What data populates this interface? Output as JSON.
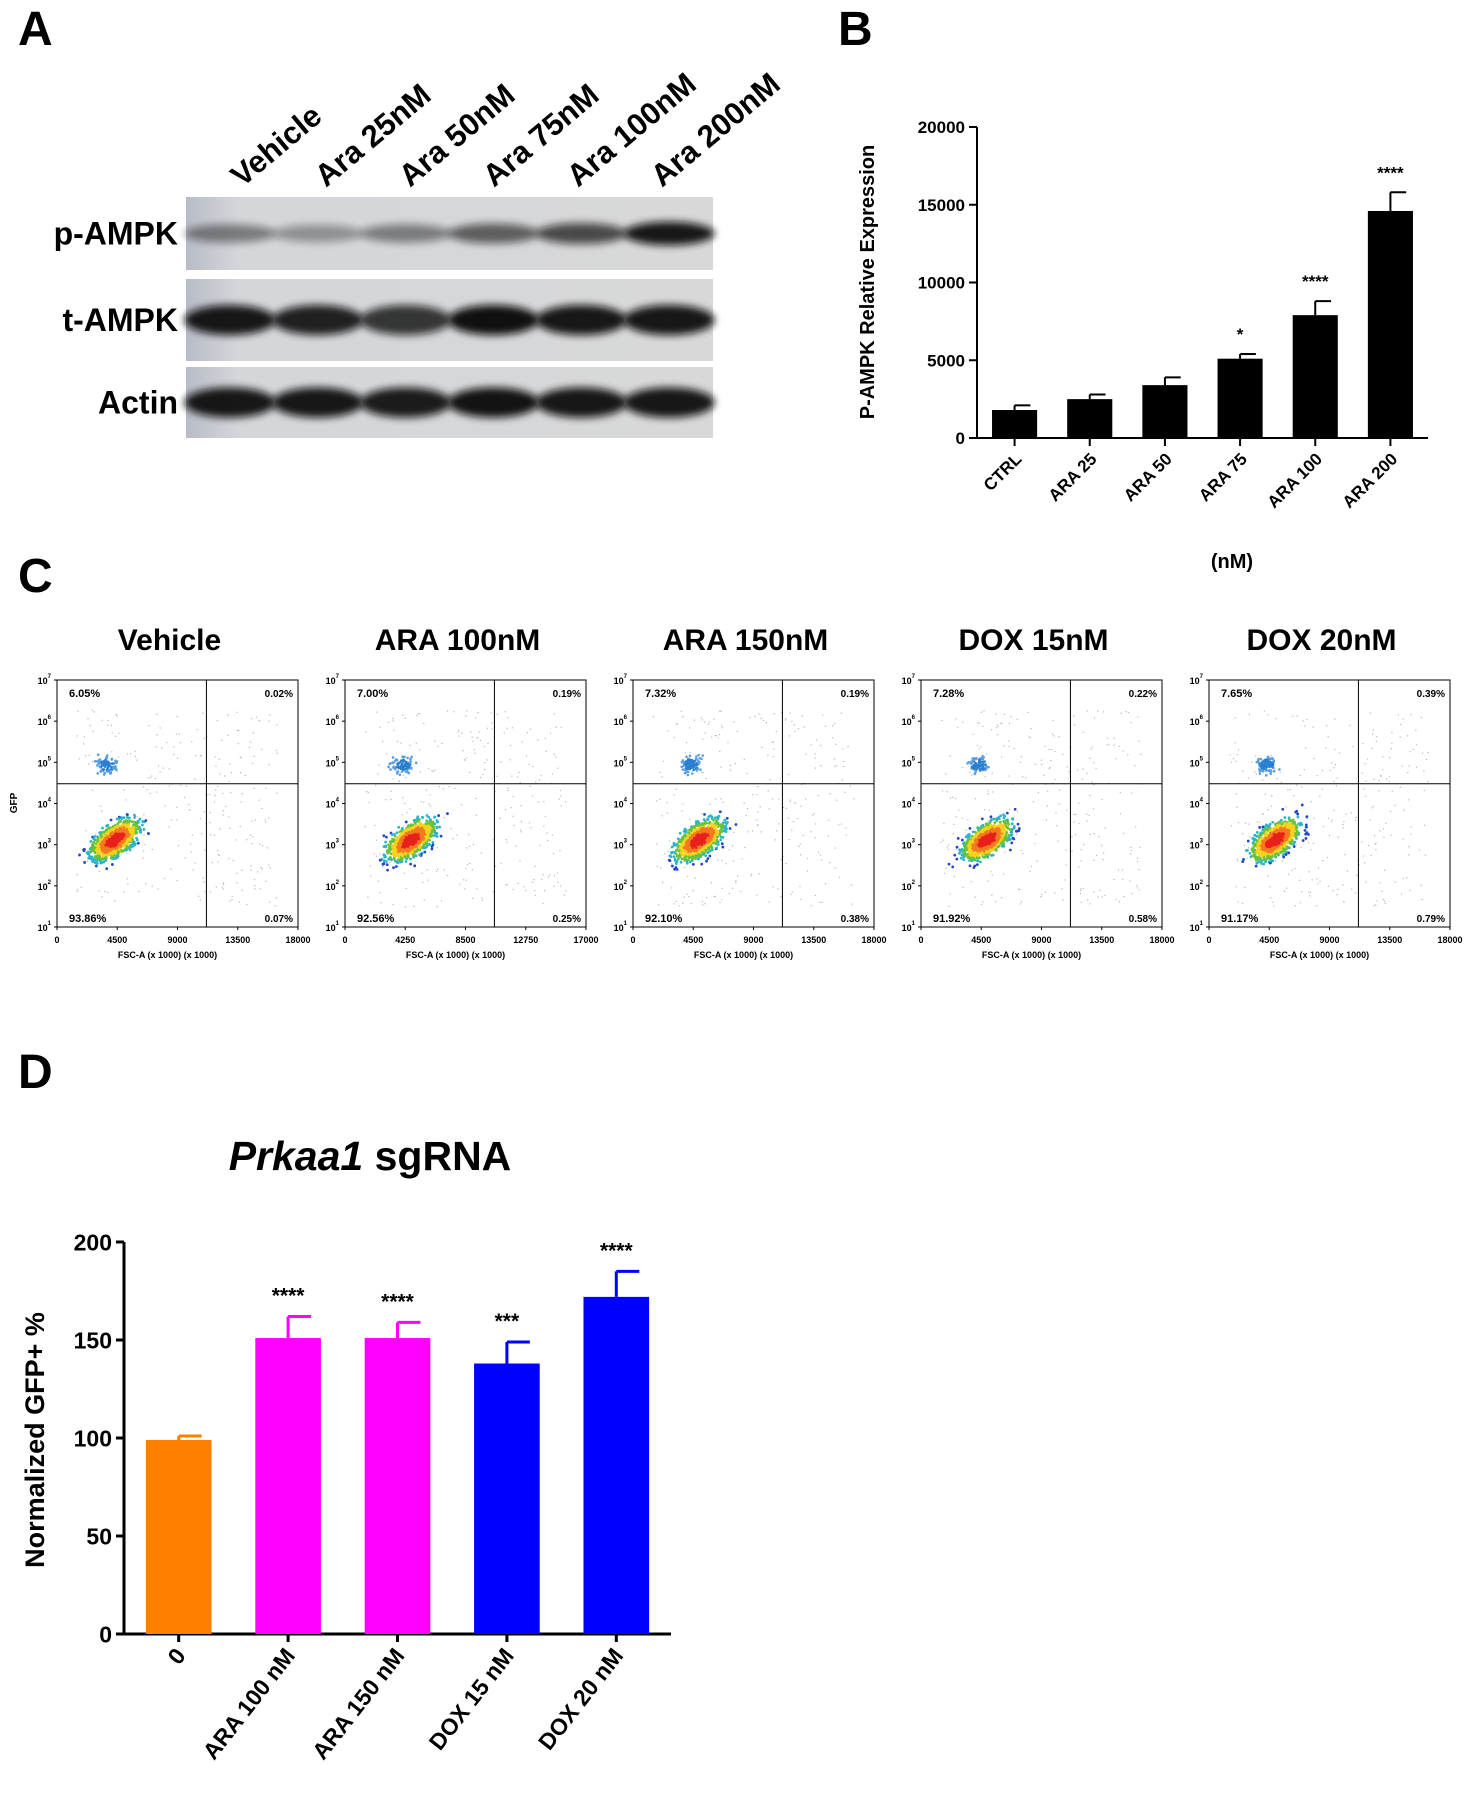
{
  "panels": [
    "A",
    "B",
    "C",
    "D"
  ],
  "blot": {
    "lanes": [
      "Vehicle",
      "Ara 25nM",
      "Ara 50nM",
      "Ara 75nM",
      "Ara 100nM",
      "Ara 200nM"
    ],
    "rows": [
      "p-AMPK",
      "t-AMPK",
      "Actin"
    ]
  },
  "flow": {
    "y_label": "GFP",
    "x_label": "FSC-A (x 1000) (x 1000)",
    "yticks": [
      {
        "value": 1,
        "label": "10"
      },
      {
        "value": 2,
        "label": "10"
      },
      {
        "value": 3,
        "label": "10"
      },
      {
        "value": 4,
        "label": "10"
      },
      {
        "value": 5,
        "label": "10"
      },
      {
        "value": 6,
        "label": "10"
      },
      {
        "value": 7,
        "label": "10"
      }
    ],
    "plots": [
      {
        "title": "Vehicle",
        "upper_left": "6.05%",
        "upper_right": "0.02%",
        "lower_left": "93.86%",
        "lower_right": "0.07%",
        "xticks": [
          "0",
          "4500",
          "9000",
          "13500",
          "18000"
        ]
      },
      {
        "title": "ARA 100nM",
        "upper_left": "7.00%",
        "upper_right": "0.19%",
        "lower_left": "92.56%",
        "lower_right": "0.25%",
        "xticks": [
          "0",
          "4250",
          "8500",
          "12750",
          "17000"
        ]
      },
      {
        "title": "ARA 150nM",
        "upper_left": "7.32%",
        "upper_right": "0.19%",
        "lower_left": "92.10%",
        "lower_right": "0.38%",
        "xticks": [
          "0",
          "4500",
          "9000",
          "13500",
          "18000"
        ]
      },
      {
        "title": "DOX 15nM",
        "upper_left": "7.28%",
        "upper_right": "0.22%",
        "lower_left": "91.92%",
        "lower_right": "0.58%",
        "xticks": [
          "0",
          "4500",
          "9000",
          "13500",
          "18000"
        ]
      },
      {
        "title": "DOX 20nM",
        "upper_left": "7.65%",
        "upper_right": "0.39%",
        "lower_left": "91.17%",
        "lower_right": "0.79%",
        "xticks": [
          "0",
          "4500",
          "9000",
          "13500",
          "18000"
        ]
      }
    ]
  },
  "chart_data": [
    {
      "type": "bar",
      "y_label": "P-AMPK  Relative Expression",
      "x_label": "(nM)",
      "categories": [
        "CTRL",
        "ARA 25",
        "ARA 50",
        "ARA 75",
        "ARA 100",
        "ARA 200"
      ],
      "series": [
        {
          "colors": [
            "#000000",
            "#000000",
            "#000000",
            "#000000",
            "#000000",
            "#000000"
          ],
          "values": [
            1800,
            2500,
            3400,
            5100,
            7900,
            14600
          ],
          "errors": [
            300,
            300,
            500,
            300,
            900,
            1200
          ],
          "annotations": [
            null,
            null,
            null,
            "*",
            "****",
            "****"
          ]
        }
      ],
      "ylim": [
        0,
        20000
      ],
      "yticks": [
        0,
        5000,
        10000,
        15000,
        20000
      ]
    },
    {
      "type": "bar",
      "title_italic": "Prkaa1",
      "title": "sgRNA",
      "y_label": "Normalized GFP+ %",
      "categories": [
        "0",
        "ARA 100 nM",
        "ARA 150 nM",
        "DOX 15 nM",
        "DOX 20 nM"
      ],
      "series": [
        {
          "colors": [
            "#ff8000",
            "#ff00ff",
            "#ff00ff",
            "#0000ff",
            "#0000ff"
          ],
          "values": [
            99,
            151,
            151,
            138,
            172
          ],
          "errors": [
            2,
            11,
            8,
            11,
            13
          ],
          "annotations": [
            null,
            "****",
            "****",
            "***",
            "****"
          ]
        }
      ],
      "ylim": [
        0,
        200
      ],
      "yticks": [
        0,
        50,
        100,
        150,
        200
      ]
    }
  ]
}
